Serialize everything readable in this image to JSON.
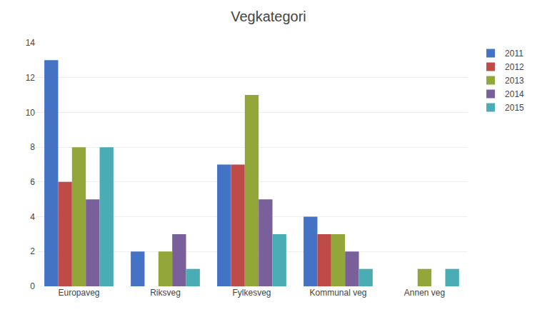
{
  "chart_data": {
    "type": "bar",
    "title": "Vegkategori",
    "categories": [
      "Europaveg",
      "Riksveg",
      "Fylkesveg",
      "Kommunal veg",
      "Annen veg"
    ],
    "series": [
      {
        "name": "2011",
        "color": "#4472C4",
        "values": [
          13,
          2,
          7,
          4,
          0
        ]
      },
      {
        "name": "2012",
        "color": "#BE4B48",
        "values": [
          6,
          0,
          7,
          3,
          0
        ]
      },
      {
        "name": "2013",
        "color": "#92A63A",
        "values": [
          8,
          2,
          11,
          3,
          1
        ]
      },
      {
        "name": "2014",
        "color": "#7A609B",
        "values": [
          5,
          3,
          5,
          2,
          0
        ]
      },
      {
        "name": "2015",
        "color": "#4AACB5",
        "values": [
          8,
          1,
          3,
          1,
          1
        ]
      }
    ],
    "ylim": [
      0,
      14
    ],
    "yticks": [
      0,
      2,
      4,
      6,
      8,
      10,
      12,
      14
    ],
    "grid": true,
    "legend": "right"
  }
}
